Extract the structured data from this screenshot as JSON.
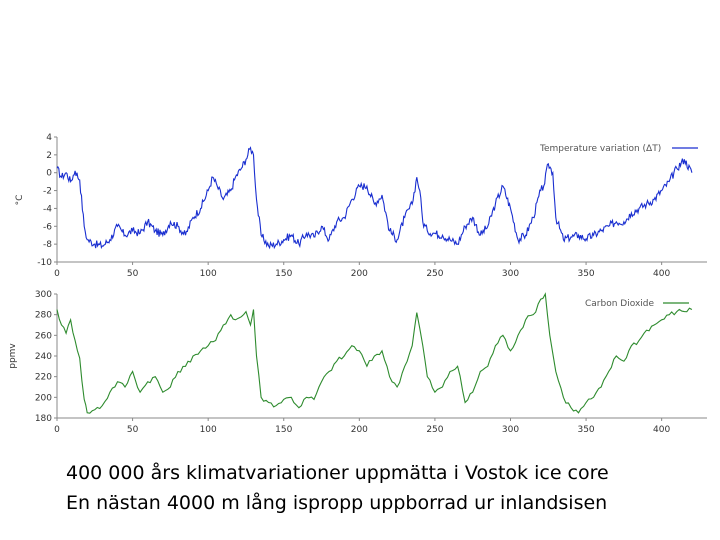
{
  "captions": {
    "line1": "400 000 års klimatvariationer uppmätta i Vostok ice core",
    "line2": "En nästan 4000 m lång ispropp uppborrad ur inlandsisen"
  },
  "chart_data": [
    {
      "type": "line",
      "ylabel": "°C",
      "legend": "Temperature variation (ΔT)",
      "legend_position": "top-right",
      "color": "#1a2fd0",
      "xlim": [
        0,
        430
      ],
      "ylim": [
        -10,
        4
      ],
      "xticks": [
        0,
        50,
        100,
        150,
        200,
        250,
        300,
        350,
        400
      ],
      "yticks": [
        4,
        2,
        0,
        -2,
        -4,
        -6,
        -8,
        -10
      ],
      "ytick_labels": [
        "4",
        "2",
        "0",
        "-2",
        "-4",
        "-6",
        "-8",
        "-10"
      ],
      "x": [
        0,
        3,
        6,
        9,
        12,
        15,
        18,
        20,
        25,
        30,
        35,
        40,
        45,
        50,
        55,
        60,
        65,
        70,
        75,
        80,
        85,
        90,
        95,
        100,
        103,
        106,
        110,
        115,
        118,
        122,
        125,
        128,
        130,
        132,
        135,
        140,
        145,
        150,
        155,
        160,
        165,
        170,
        175,
        180,
        185,
        190,
        195,
        200,
        205,
        210,
        215,
        220,
        225,
        230,
        235,
        238,
        240,
        242,
        245,
        250,
        255,
        260,
        265,
        270,
        275,
        280,
        285,
        290,
        295,
        300,
        305,
        310,
        315,
        320,
        322,
        325,
        328,
        330,
        335,
        340,
        345,
        350,
        355,
        360,
        365,
        370,
        375,
        380,
        385,
        390,
        395,
        400,
        405,
        410,
        415,
        420
      ],
      "values": [
        0.5,
        -0.5,
        0,
        -1,
        0.2,
        -0.8,
        -6,
        -7.5,
        -8,
        -8.2,
        -7.5,
        -6,
        -7,
        -6.5,
        -6.8,
        -5.5,
        -6.5,
        -7,
        -5.5,
        -6,
        -7,
        -5,
        -4,
        -2,
        -0.5,
        -1.5,
        -3,
        -2,
        -0.5,
        0.5,
        1.5,
        2.8,
        2,
        -3,
        -7,
        -8.2,
        -8,
        -7.5,
        -7,
        -8,
        -6.8,
        -7.2,
        -6,
        -7.5,
        -5.5,
        -5,
        -3,
        -1.5,
        -1.5,
        -3.5,
        -2.5,
        -6.5,
        -7.5,
        -5,
        -3.5,
        -0.5,
        -2,
        -5.5,
        -6.5,
        -6.8,
        -7,
        -7.5,
        -8,
        -6,
        -5,
        -7,
        -6,
        -3.5,
        -1.5,
        -4,
        -7.5,
        -7,
        -5,
        -2,
        -1.5,
        1,
        0,
        -5,
        -7.5,
        -7.2,
        -7,
        -7.4,
        -7,
        -6.5,
        -6,
        -5.5,
        -5.5,
        -4.5,
        -4,
        -3.5,
        -3,
        -2,
        -1,
        0.5,
        1.5,
        0
      ],
      "series_name": "Temperature variation (ΔT)"
    },
    {
      "type": "line",
      "ylabel": "ppmv",
      "legend": "Carbon Dioxide",
      "legend_position": "top-right",
      "color": "#2e8b2e",
      "xlim": [
        0,
        430
      ],
      "ylim": [
        180,
        300
      ],
      "xticks": [
        0,
        50,
        100,
        150,
        200,
        250,
        300,
        350,
        400
      ],
      "yticks": [
        300,
        280,
        260,
        240,
        220,
        200,
        180
      ],
      "ytick_labels": [
        "300",
        "280",
        "260",
        "240",
        "220",
        "200",
        "180"
      ],
      "x": [
        0,
        3,
        6,
        9,
        12,
        15,
        18,
        20,
        25,
        30,
        35,
        40,
        45,
        50,
        55,
        60,
        65,
        70,
        75,
        80,
        85,
        90,
        95,
        100,
        105,
        110,
        115,
        118,
        122,
        125,
        128,
        130,
        132,
        135,
        140,
        145,
        150,
        155,
        160,
        165,
        170,
        175,
        180,
        185,
        190,
        195,
        200,
        205,
        210,
        215,
        220,
        225,
        230,
        235,
        238,
        242,
        245,
        250,
        255,
        260,
        265,
        270,
        275,
        280,
        285,
        290,
        295,
        300,
        305,
        310,
        315,
        320,
        323,
        326,
        330,
        335,
        340,
        345,
        350,
        355,
        360,
        365,
        370,
        375,
        380,
        385,
        390,
        395,
        400,
        405,
        410,
        420
      ],
      "values": [
        285,
        270,
        262,
        275,
        255,
        238,
        198,
        185,
        188,
        192,
        205,
        215,
        210,
        225,
        205,
        215,
        220,
        205,
        210,
        225,
        230,
        240,
        245,
        250,
        255,
        270,
        280,
        275,
        278,
        283,
        270,
        285,
        240,
        200,
        195,
        192,
        198,
        200,
        190,
        200,
        198,
        215,
        225,
        235,
        240,
        250,
        245,
        230,
        240,
        245,
        220,
        210,
        230,
        250,
        282,
        250,
        220,
        205,
        210,
        225,
        230,
        195,
        205,
        225,
        230,
        250,
        260,
        245,
        260,
        275,
        280,
        295,
        300,
        260,
        225,
        200,
        190,
        185,
        195,
        200,
        210,
        225,
        240,
        235,
        250,
        255,
        265,
        270,
        275,
        280,
        283,
        285
      ],
      "series_name": "Carbon Dioxide"
    }
  ]
}
